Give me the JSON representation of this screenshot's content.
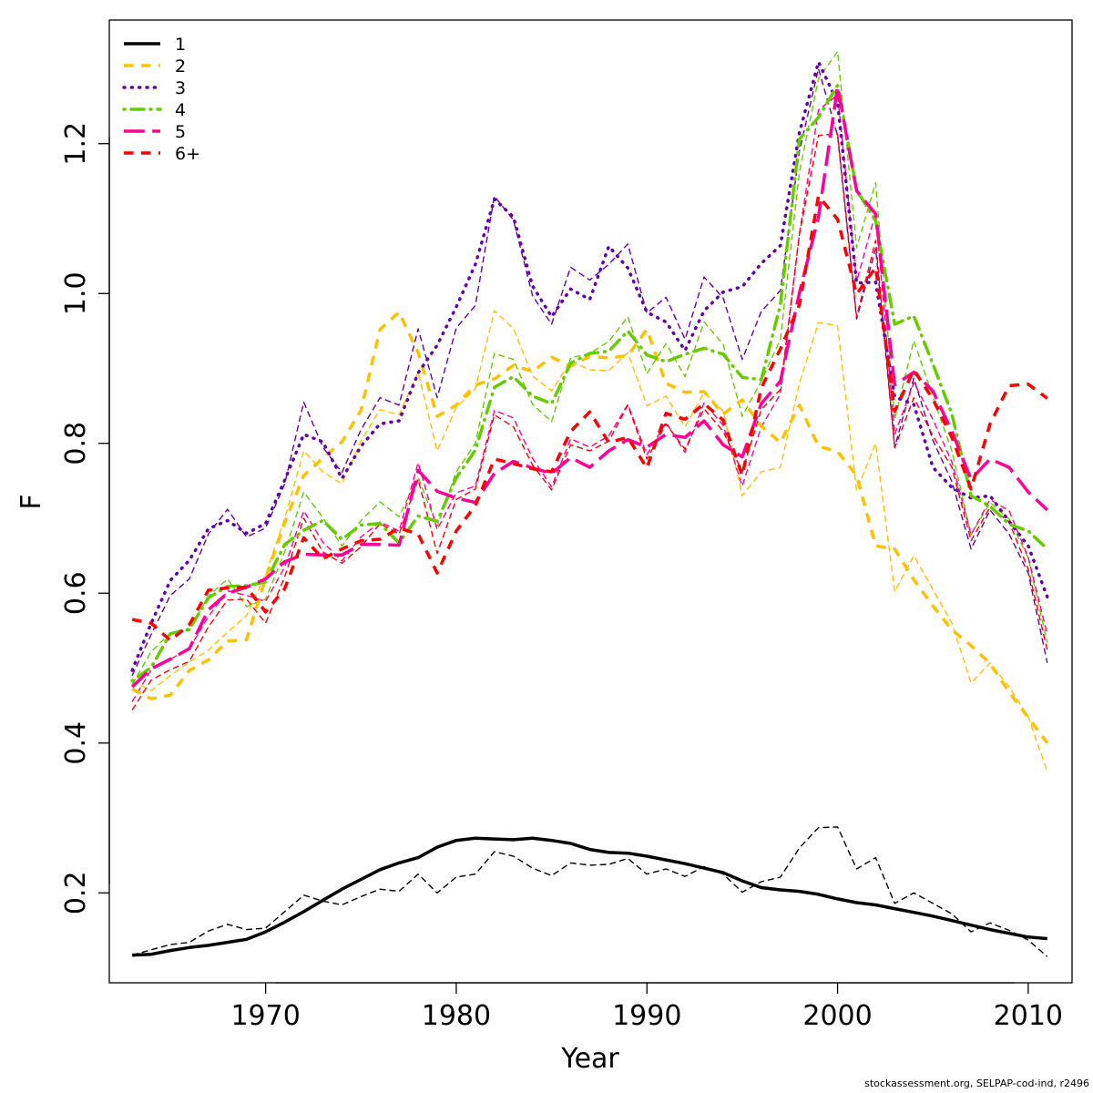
{
  "chart_data": {
    "type": "line",
    "title": "",
    "xlabel": "Year",
    "ylabel": "F",
    "xlim": [
      1961.8,
      2012.3
    ],
    "ylim": [
      0.08,
      1.365
    ],
    "xticks": [
      1970,
      1980,
      1990,
      2000,
      2010
    ],
    "xtick_labels": [
      "1970",
      "1980",
      "1990",
      "2000",
      "2010"
    ],
    "yticks": [
      0.2,
      0.4,
      0.6,
      0.8,
      1.0,
      1.2
    ],
    "ytick_labels": [
      "0.2",
      "0.4",
      "0.6",
      "0.8",
      "1.0",
      "1.2"
    ],
    "legend_position": "top-left",
    "x": [
      1963,
      1964,
      1965,
      1966,
      1967,
      1968,
      1969,
      1970,
      1971,
      1972,
      1973,
      1974,
      1975,
      1976,
      1977,
      1978,
      1979,
      1980,
      1981,
      1982,
      1983,
      1984,
      1985,
      1986,
      1987,
      1988,
      1989,
      1990,
      1991,
      1992,
      1993,
      1994,
      1995,
      1996,
      1997,
      1998,
      1999,
      2000,
      2001,
      2002,
      2003,
      2004,
      2005,
      2006,
      2007,
      2008,
      2009,
      2010,
      2011
    ],
    "series": [
      {
        "name": "1",
        "color": "#000000",
        "dash": "solid",
        "width": 3.5,
        "values": [
          0.117,
          0.118,
          0.123,
          0.127,
          0.13,
          0.134,
          0.138,
          0.148,
          0.161,
          0.175,
          0.19,
          0.205,
          0.218,
          0.231,
          0.24,
          0.247,
          0.261,
          0.27,
          0.273,
          0.272,
          0.271,
          0.273,
          0.27,
          0.266,
          0.258,
          0.254,
          0.253,
          0.249,
          0.244,
          0.239,
          0.233,
          0.227,
          0.216,
          0.207,
          0.204,
          0.202,
          0.198,
          0.192,
          0.187,
          0.184,
          0.179,
          0.174,
          0.169,
          0.163,
          0.157,
          0.151,
          0.146,
          0.141,
          0.139
        ],
        "comparison": [
          0.117,
          0.124,
          0.131,
          0.134,
          0.149,
          0.158,
          0.151,
          0.153,
          0.175,
          0.197,
          0.189,
          0.184,
          0.195,
          0.205,
          0.202,
          0.225,
          0.2,
          0.221,
          0.225,
          0.255,
          0.249,
          0.233,
          0.223,
          0.24,
          0.237,
          0.238,
          0.246,
          0.225,
          0.232,
          0.222,
          0.235,
          0.225,
          0.201,
          0.215,
          0.221,
          0.26,
          0.287,
          0.288,
          0.232,
          0.247,
          0.186,
          0.2,
          0.186,
          0.172,
          0.148,
          0.16,
          0.15,
          0.137,
          0.115
        ]
      },
      {
        "name": "2",
        "color": "#FFC000",
        "dash": "dashed",
        "width": 3.5,
        "values": [
          0.472,
          0.459,
          0.464,
          0.497,
          0.511,
          0.536,
          0.538,
          0.62,
          0.694,
          0.757,
          0.78,
          0.802,
          0.844,
          0.952,
          0.975,
          0.921,
          0.836,
          0.851,
          0.878,
          0.886,
          0.904,
          0.896,
          0.915,
          0.903,
          0.916,
          0.914,
          0.917,
          0.952,
          0.88,
          0.868,
          0.869,
          0.839,
          0.858,
          0.823,
          0.801,
          0.851,
          0.796,
          0.789,
          0.757,
          0.663,
          0.659,
          0.618,
          0.583,
          0.551,
          0.53,
          0.506,
          0.468,
          0.434,
          0.4
        ],
        "comparison": [
          0.483,
          0.47,
          0.49,
          0.508,
          0.524,
          0.548,
          0.57,
          0.625,
          0.7,
          0.79,
          0.762,
          0.746,
          0.803,
          0.845,
          0.838,
          0.895,
          0.79,
          0.848,
          0.873,
          0.977,
          0.953,
          0.89,
          0.87,
          0.91,
          0.898,
          0.897,
          0.921,
          0.85,
          0.863,
          0.822,
          0.868,
          0.843,
          0.73,
          0.762,
          0.768,
          0.88,
          0.961,
          0.957,
          0.737,
          0.8,
          0.602,
          0.65,
          0.605,
          0.56,
          0.48,
          0.507,
          0.475,
          0.435,
          0.362
        ]
      },
      {
        "name": "3",
        "color": "#6600AA",
        "dash": "dotted",
        "width": 3.5,
        "values": [
          0.497,
          0.56,
          0.617,
          0.644,
          0.686,
          0.697,
          0.68,
          0.693,
          0.751,
          0.812,
          0.802,
          0.753,
          0.796,
          0.826,
          0.83,
          0.894,
          0.931,
          0.982,
          1.039,
          1.126,
          1.102,
          1.01,
          0.969,
          1.006,
          0.992,
          1.063,
          1.034,
          0.975,
          0.962,
          0.924,
          0.977,
          1.002,
          1.009,
          1.04,
          1.064,
          1.215,
          1.309,
          1.255,
          1.014,
          1.015,
          0.862,
          0.852,
          0.768,
          0.741,
          0.727,
          0.73,
          0.696,
          0.663,
          0.595
        ],
        "comparison": [
          0.49,
          0.545,
          0.597,
          0.619,
          0.679,
          0.712,
          0.675,
          0.687,
          0.746,
          0.855,
          0.795,
          0.761,
          0.818,
          0.861,
          0.851,
          0.953,
          0.861,
          0.954,
          0.984,
          1.13,
          1.098,
          0.997,
          0.959,
          1.035,
          1.018,
          1.039,
          1.066,
          0.974,
          0.995,
          0.939,
          1.022,
          0.994,
          0.912,
          0.976,
          1.004,
          1.19,
          1.3,
          1.211,
          0.966,
          1.06,
          0.795,
          0.887,
          0.804,
          0.749,
          0.659,
          0.711,
          0.679,
          0.627,
          0.507
        ]
      },
      {
        "name": "4",
        "color": "#66CC00",
        "dash": "dotdash",
        "width": 3.5,
        "values": [
          0.483,
          0.501,
          0.546,
          0.552,
          0.594,
          0.609,
          0.61,
          0.615,
          0.665,
          0.684,
          0.697,
          0.672,
          0.691,
          0.693,
          0.667,
          0.703,
          0.696,
          0.754,
          0.791,
          0.875,
          0.889,
          0.863,
          0.853,
          0.907,
          0.92,
          0.923,
          0.95,
          0.918,
          0.909,
          0.919,
          0.927,
          0.919,
          0.888,
          0.885,
          0.985,
          1.206,
          1.235,
          1.278,
          1.138,
          1.097,
          0.959,
          0.97,
          0.906,
          0.839,
          0.73,
          0.716,
          0.692,
          0.683,
          0.659
        ],
        "comparison": [
          0.478,
          0.522,
          0.547,
          0.55,
          0.596,
          0.619,
          0.582,
          0.592,
          0.655,
          0.735,
          0.701,
          0.663,
          0.697,
          0.722,
          0.702,
          0.755,
          0.689,
          0.762,
          0.8,
          0.92,
          0.912,
          0.852,
          0.829,
          0.914,
          0.92,
          0.936,
          0.969,
          0.893,
          0.933,
          0.889,
          0.962,
          0.932,
          0.836,
          0.883,
          0.939,
          1.162,
          1.287,
          1.323,
          1.061,
          1.148,
          0.832,
          0.937,
          0.862,
          0.79,
          0.678,
          0.721,
          0.699,
          0.647,
          0.534
        ]
      },
      {
        "name": "5",
        "color": "#FF0099",
        "dash": "longdash",
        "width": 3.5,
        "values": [
          0.475,
          0.499,
          0.512,
          0.526,
          0.578,
          0.6,
          0.608,
          0.619,
          0.642,
          0.652,
          0.651,
          0.651,
          0.665,
          0.665,
          0.664,
          0.764,
          0.736,
          0.727,
          0.721,
          0.76,
          0.776,
          0.767,
          0.76,
          0.781,
          0.768,
          0.79,
          0.805,
          0.795,
          0.812,
          0.808,
          0.83,
          0.798,
          0.782,
          0.853,
          0.883,
          1.001,
          1.102,
          1.276,
          1.137,
          1.106,
          0.878,
          0.895,
          0.87,
          0.816,
          0.752,
          0.779,
          0.768,
          0.735,
          0.711
        ],
        "comparison": [
          0.455,
          0.498,
          0.512,
          0.526,
          0.569,
          0.603,
          0.597,
          0.589,
          0.635,
          0.71,
          0.668,
          0.643,
          0.675,
          0.695,
          0.683,
          0.774,
          0.685,
          0.734,
          0.743,
          0.844,
          0.834,
          0.78,
          0.742,
          0.806,
          0.795,
          0.81,
          0.852,
          0.785,
          0.828,
          0.788,
          0.854,
          0.824,
          0.743,
          0.822,
          0.866,
          1.08,
          1.245,
          1.265,
          1.016,
          1.108,
          0.812,
          0.881,
          0.832,
          0.775,
          0.678,
          0.725,
          0.71,
          0.648,
          0.545
        ]
      },
      {
        "name": "6+",
        "color": "#FF0000",
        "dash": "dashed",
        "width": 3.5,
        "values": [
          0.565,
          0.56,
          0.537,
          0.558,
          0.604,
          0.607,
          0.608,
          0.575,
          0.606,
          0.674,
          0.646,
          0.659,
          0.67,
          0.672,
          0.687,
          0.679,
          0.627,
          0.683,
          0.717,
          0.779,
          0.773,
          0.766,
          0.762,
          0.816,
          0.842,
          0.801,
          0.808,
          0.767,
          0.84,
          0.832,
          0.853,
          0.831,
          0.757,
          0.874,
          0.926,
          0.985,
          1.13,
          1.099,
          0.999,
          1.035,
          0.843,
          0.898,
          0.859,
          0.808,
          0.739,
          0.826,
          0.877,
          0.879,
          0.86
        ],
        "comparison": [
          0.444,
          0.484,
          0.498,
          0.509,
          0.555,
          0.591,
          0.592,
          0.56,
          0.622,
          0.7,
          0.655,
          0.64,
          0.662,
          0.693,
          0.679,
          0.752,
          0.653,
          0.725,
          0.739,
          0.838,
          0.822,
          0.771,
          0.738,
          0.798,
          0.79,
          0.803,
          0.851,
          0.779,
          0.826,
          0.792,
          0.846,
          0.816,
          0.762,
          0.845,
          0.872,
          1.079,
          1.211,
          1.213,
          0.969,
          1.071,
          0.794,
          0.861,
          0.81,
          0.768,
          0.67,
          0.715,
          0.695,
          0.632,
          0.524
        ]
      }
    ]
  },
  "footer": "stockassessment.org, SELPAP-cod-ind, r2496"
}
